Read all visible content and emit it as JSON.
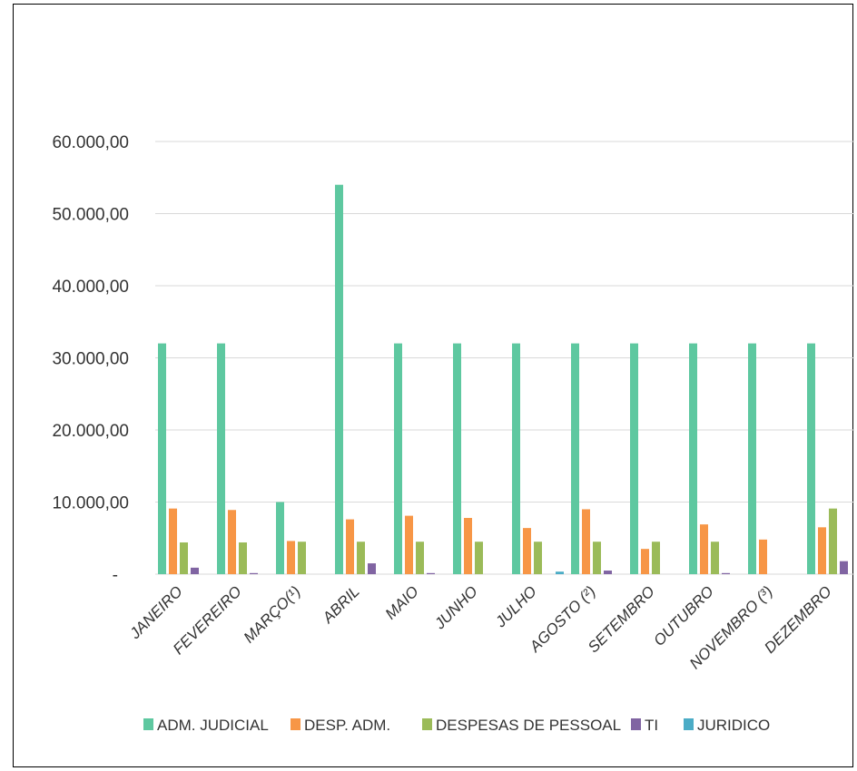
{
  "chart_data": {
    "type": "bar",
    "title": "",
    "xlabel": "",
    "ylabel": "",
    "ylim": [
      0,
      60000
    ],
    "grid": true,
    "legend_position": "bottom",
    "y_ticks": [
      {
        "value": 0,
        "label": "-"
      },
      {
        "value": 10000,
        "label": "10.000,00"
      },
      {
        "value": 20000,
        "label": "20.000,00"
      },
      {
        "value": 30000,
        "label": "30.000,00"
      },
      {
        "value": 40000,
        "label": "40.000,00"
      },
      {
        "value": 50000,
        "label": "50.000,00"
      },
      {
        "value": 60000,
        "label": "60.000,00"
      }
    ],
    "categories": [
      "JANEIRO",
      "FEVEREIRO",
      "MARÇO(¹)",
      "ABRIL",
      "MAIO",
      "JUNHO",
      "JULHO",
      "AGOSTO (²)",
      "SETEMBRO",
      "OUTUBRO",
      "NOVEMBRO (³)",
      "DEZEMBRO"
    ],
    "series": [
      {
        "name": "ADM. JUDICIAL",
        "color": "#5ec8a0",
        "values": [
          32000,
          32000,
          10000,
          54000,
          32000,
          32000,
          32000,
          32000,
          32000,
          32000,
          32000,
          32000
        ]
      },
      {
        "name": "DESP. ADM.",
        "color": "#f79646",
        "values": [
          9100,
          8900,
          4600,
          7600,
          8100,
          7800,
          6400,
          9000,
          3500,
          6900,
          4800,
          6500
        ]
      },
      {
        "name": "DESPESAS DE PESSOAL",
        "color": "#9bbb59",
        "values": [
          4400,
          4400,
          4500,
          4500,
          4500,
          4500,
          4500,
          4500,
          4500,
          4500,
          0,
          9100
        ]
      },
      {
        "name": "TI",
        "color": "#8064a2",
        "values": [
          900,
          150,
          0,
          1500,
          150,
          0,
          0,
          500,
          0,
          150,
          0,
          1800
        ]
      },
      {
        "name": "JURIDICO",
        "color": "#4bacc6",
        "values": [
          0,
          0,
          0,
          0,
          0,
          0,
          350,
          0,
          0,
          0,
          0,
          0
        ]
      }
    ]
  }
}
